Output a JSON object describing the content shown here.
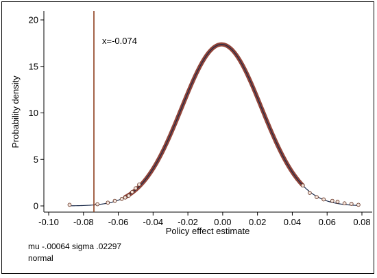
{
  "chart_data": {
    "type": "scatter",
    "xlabel": "Policy effect estimate",
    "ylabel": "Probability density",
    "xlim": [
      -0.1,
      0.08
    ],
    "ylim": [
      0,
      20
    ],
    "xticks": [
      -0.1,
      -0.08,
      -0.06,
      -0.04,
      -0.02,
      0.0,
      0.02,
      0.04,
      0.06,
      0.08
    ],
    "xtick_labels": [
      "-0.10",
      "-0.08",
      "-0.06",
      "-0.04",
      "-0.02",
      "0.00",
      "0.02",
      "0.04",
      "0.06",
      "0.08"
    ],
    "yticks": [
      0,
      5,
      10,
      15,
      20
    ],
    "ytick_labels": [
      "0",
      "5",
      "10",
      "15",
      "20"
    ],
    "grid": false,
    "normal_curve": {
      "mu": -0.00064,
      "sigma": 0.02297
    },
    "reference_line": {
      "x": -0.074,
      "label": "x=-0.074",
      "color": "#8b3a1a"
    },
    "points": [
      {
        "x": -0.088,
        "y": 0.12
      },
      {
        "x": -0.072,
        "y": 0.18
      },
      {
        "x": -0.066,
        "y": 0.35
      },
      {
        "x": -0.062,
        "y": 0.55
      },
      {
        "x": -0.058,
        "y": 0.75
      },
      {
        "x": -0.056,
        "y": 0.9
      },
      {
        "x": -0.054,
        "y": 1.1
      },
      {
        "x": -0.052,
        "y": 1.5
      },
      {
        "x": -0.05,
        "y": 1.9
      },
      {
        "x": -0.048,
        "y": 2.3
      },
      {
        "x": 0.046,
        "y": 2.2
      },
      {
        "x": 0.05,
        "y": 1.4
      },
      {
        "x": 0.054,
        "y": 0.95
      },
      {
        "x": 0.058,
        "y": 0.7
      },
      {
        "x": 0.063,
        "y": 0.55
      },
      {
        "x": 0.066,
        "y": 0.45
      },
      {
        "x": 0.07,
        "y": 0.28
      },
      {
        "x": 0.074,
        "y": 0.22
      },
      {
        "x": 0.078,
        "y": 0.12
      }
    ]
  },
  "notes": {
    "line1": "mu -.00064 sigma .02297",
    "line2": "normal"
  }
}
